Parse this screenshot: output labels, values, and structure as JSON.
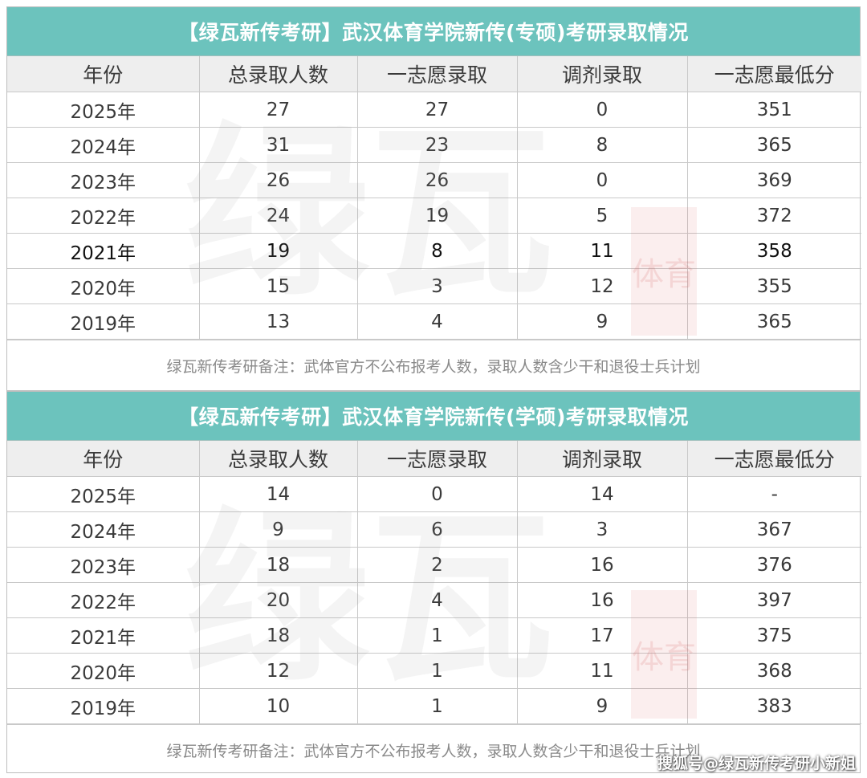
{
  "tables": [
    {
      "title": "【绿瓦新传考研】武汉体育学院新传(专硕)考研录取情况",
      "headers": [
        "年份",
        "总录取人数",
        "一志愿录取",
        "调剂录取",
        "一志愿最低分"
      ],
      "rows": [
        [
          "2025年",
          "27",
          "27",
          "0",
          "351"
        ],
        [
          "2024年",
          "31",
          "23",
          "8",
          "365"
        ],
        [
          "2023年",
          "26",
          "26",
          "0",
          "369"
        ],
        [
          "2022年",
          "24",
          "19",
          "5",
          "372"
        ],
        [
          "2021年",
          "19",
          "8",
          "11",
          "358"
        ],
        [
          "2020年",
          "15",
          "3",
          "12",
          "355"
        ],
        [
          "2019年",
          "13",
          "4",
          "9",
          "365"
        ]
      ],
      "note": "绿瓦新传考研备注：武体官方不公布报考人数，录取人数含少干和退役士兵计划"
    },
    {
      "title": "【绿瓦新传考研】武汉体育学院新传(学硕)考研录取情况",
      "headers": [
        "年份",
        "总录取人数",
        "一志愿录取",
        "调剂录取",
        "一志愿最低分"
      ],
      "rows": [
        [
          "2025年",
          "14",
          "0",
          "14",
          "-"
        ],
        [
          "2024年",
          "9",
          "6",
          "3",
          "367"
        ],
        [
          "2023年",
          "18",
          "2",
          "16",
          "376"
        ],
        [
          "2022年",
          "20",
          "4",
          "16",
          "397"
        ],
        [
          "2021年",
          "18",
          "1",
          "17",
          "375"
        ],
        [
          "2020年",
          "12",
          "1",
          "11",
          "368"
        ],
        [
          "2019年",
          "10",
          "1",
          "9",
          "383"
        ]
      ],
      "note": "绿瓦新传考研备注：武体官方不公布报考人数，录取人数含少干和退役士兵计划"
    }
  ],
  "watermark": {
    "main_text": "绿瓦",
    "seal_text": "体育"
  },
  "source_credit": "搜狐号@绿瓦新传考研小新姐",
  "colors": {
    "title_bar": "#6cc3bd",
    "header_bg": "#eeeeee",
    "border": "#c9c9c9",
    "note_text": "#8a8a8a"
  }
}
